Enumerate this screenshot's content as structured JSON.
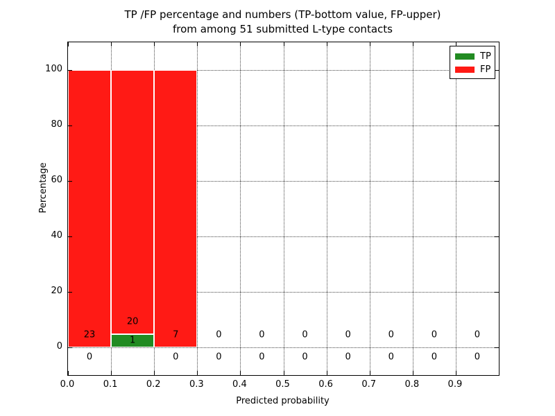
{
  "chart_data": {
    "type": "bar",
    "title_line1": "TP /FP percentage and numbers (TP-bottom value, FP-upper)",
    "title_line2": "from among 51 submitted L-type contacts",
    "xlabel": "Predicted probability",
    "ylabel": "Percentage",
    "xlim": [
      0.0,
      1.0
    ],
    "ylim": [
      -10,
      110
    ],
    "x_tick_values": [
      0.0,
      0.1,
      0.2,
      0.3,
      0.4,
      0.5,
      0.6,
      0.7,
      0.8,
      0.9
    ],
    "x_tick_labels": [
      "0.0",
      "0.1",
      "0.2",
      "0.3",
      "0.4",
      "0.5",
      "0.6",
      "0.7",
      "0.8",
      "0.9"
    ],
    "y_tick_values": [
      0,
      20,
      40,
      60,
      80,
      100
    ],
    "y_tick_labels": [
      "0",
      "20",
      "40",
      "60",
      "80",
      "100"
    ],
    "grid": true,
    "legend_position": "upper right",
    "series": [
      {
        "name": "TP",
        "color": "#228b22"
      },
      {
        "name": "FP",
        "color": "#ff1a15"
      }
    ],
    "bar_edge_color": "#ffffff",
    "bin_width": 0.1,
    "bins": [
      {
        "x0": 0.0,
        "x1": 0.1,
        "tp_count": 0,
        "fp_count": 23,
        "tp_pct": 0,
        "fp_pct": 100
      },
      {
        "x0": 0.1,
        "x1": 0.2,
        "tp_count": 1,
        "fp_count": 20,
        "tp_pct": 4.76,
        "fp_pct": 95.24
      },
      {
        "x0": 0.2,
        "x1": 0.3,
        "tp_count": 0,
        "fp_count": 7,
        "tp_pct": 0,
        "fp_pct": 100
      },
      {
        "x0": 0.3,
        "x1": 0.4,
        "tp_count": 0,
        "fp_count": 0,
        "tp_pct": 0,
        "fp_pct": 0
      },
      {
        "x0": 0.4,
        "x1": 0.5,
        "tp_count": 0,
        "fp_count": 0,
        "tp_pct": 0,
        "fp_pct": 0
      },
      {
        "x0": 0.5,
        "x1": 0.6,
        "tp_count": 0,
        "fp_count": 0,
        "tp_pct": 0,
        "fp_pct": 0
      },
      {
        "x0": 0.6,
        "x1": 0.7,
        "tp_count": 0,
        "fp_count": 0,
        "tp_pct": 0,
        "fp_pct": 0
      },
      {
        "x0": 0.7,
        "x1": 0.8,
        "tp_count": 0,
        "fp_count": 0,
        "tp_pct": 0,
        "fp_pct": 0
      },
      {
        "x0": 0.8,
        "x1": 0.9,
        "tp_count": 0,
        "fp_count": 0,
        "tp_pct": 0,
        "fp_pct": 0
      },
      {
        "x0": 0.9,
        "x1": 1.0,
        "tp_count": 0,
        "fp_count": 0,
        "tp_pct": 0,
        "fp_pct": 0
      }
    ]
  }
}
